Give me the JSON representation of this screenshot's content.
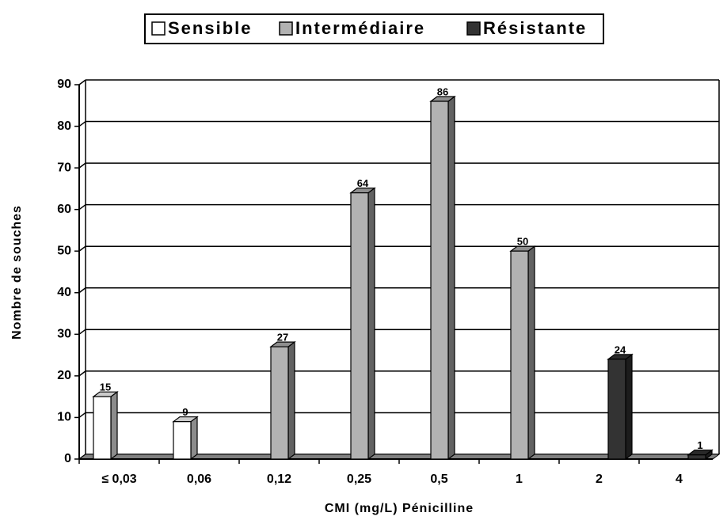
{
  "chart_data": {
    "type": "bar3d",
    "x_label": "CMI (mg/L) Pénicilline",
    "y_label": "Nombre de souches",
    "categories": [
      "≤ 0,03",
      "0,06",
      "0,12",
      "0,25",
      "0,5",
      "1",
      "2",
      "4"
    ],
    "series": [
      {
        "name": "Sensible",
        "color": "#ffffff",
        "values": [
          15,
          9,
          null,
          null,
          null,
          null,
          null,
          null
        ]
      },
      {
        "name": "Intermédiaire",
        "color": "#b2b2b2",
        "values": [
          null,
          null,
          27,
          64,
          86,
          50,
          null,
          null
        ]
      },
      {
        "name": "Résistante",
        "color": "#333333",
        "values": [
          null,
          null,
          null,
          null,
          null,
          null,
          24,
          1
        ]
      }
    ],
    "ylim": [
      0,
      90
    ],
    "yticks": [
      0,
      10,
      20,
      30,
      40,
      50,
      60,
      70,
      80,
      90
    ],
    "grid": true,
    "legend": "top"
  }
}
